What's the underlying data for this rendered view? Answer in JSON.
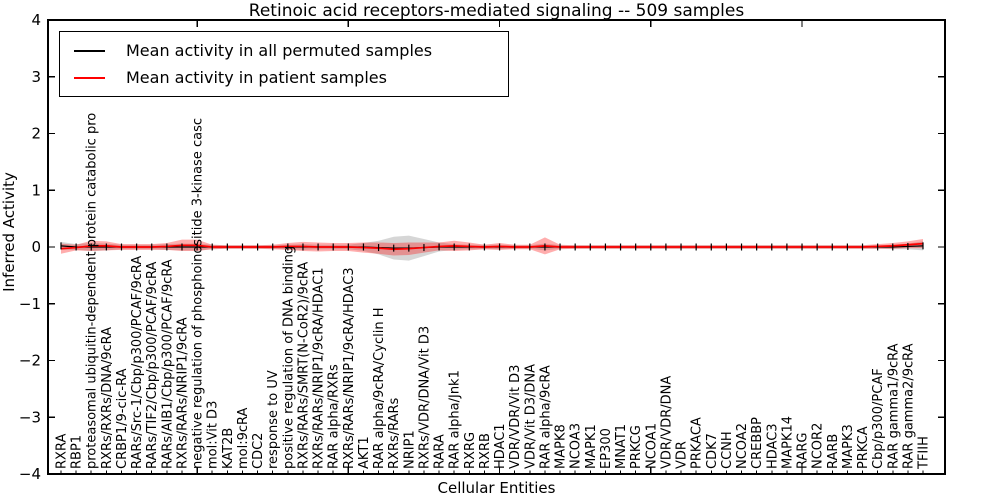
{
  "legend": {
    "entries": [
      {
        "label": "Mean activity in all permuted samples",
        "color": "#000000"
      },
      {
        "label": "Mean activity in patient samples",
        "color": "#ff0000"
      }
    ]
  },
  "chart_data": {
    "type": "line",
    "title": "Retinoic acid receptors-mediated signaling -- 509 samples",
    "xlabel": "Cellular Entities",
    "ylabel": "Inferred Activity",
    "ylim": [
      -4,
      4
    ],
    "yticks": [
      4,
      3,
      2,
      1,
      0,
      -1,
      -2,
      -3,
      -4
    ],
    "ytick_labels": [
      "4",
      "3",
      "2",
      "1",
      "0",
      "−1",
      "−2",
      "−3",
      "−4"
    ],
    "x_major_ticks": [
      10,
      20,
      30,
      40,
      50
    ],
    "grid": false,
    "legend_position": "upper left",
    "categories": [
      "RXRA",
      "RBP1",
      "proteasomal ubiquitin-dependent protein catabolic pro",
      "RXRs/RXRs/DNA/9cRA",
      "CRBP1/9-cic-RA",
      "RARs/Src-1/Cbp/p300/PCAF/9cRA",
      "RARs/TIF2/Cbp/p300/PCAF/9cRA",
      "RARs/AIB1/Cbp/p300/PCAF/9cRA",
      "RXRs/RARs/NRIP1/9cRA",
      "negative regulation of phosphoinositide 3-kinase casc",
      "mol:Vit D3",
      "KAT2B",
      "mol:9cRA",
      "CDC2",
      "response to UV",
      "positive regulation of DNA binding",
      "RXRs/RARs/SMRT(N-CoR2)/9cRA",
      "RXRs/RARs/NRIP1/9cRA/HDAC1",
      "RAR alpha/RXRs",
      "RXRs/RARs/NRIP1/9cRA/HDAC3",
      "AKT1",
      "RAR alpha/9cRA/Cyclin H",
      "RXRs/RARs",
      "NRIP1",
      "RXRs/VDR/DNA/Vit D3",
      "RARA",
      "RAR alpha/Jnk1",
      "RXRG",
      "RXRB",
      "HDAC1",
      "VDR/VDR/Vit D3",
      "VDR/Vit D3/DNA",
      "RAR alpha/9cRA",
      "MAPK8",
      "NCOA3",
      "MAPK1",
      "EP300",
      "MNAT1",
      "PRKCG",
      "NCOA1",
      "VDR/VDR/DNA",
      "VDR",
      "PRKACA",
      "CDK7",
      "CCNH",
      "NCOA2",
      "CREBBP",
      "HDAC3",
      "MAPK14",
      "RARG",
      "NCOR2",
      "RARB",
      "MAPK3",
      "PRKCA",
      "Cbp/p300/PCAF",
      "RAR gamma1/9cRA",
      "RAR gamma2/9cRA",
      "TFIIH"
    ],
    "series": [
      {
        "name": "Mean activity in all permuted samples",
        "color": "#000000",
        "band_color": "rgba(0,0,0,0.16)",
        "band_name": "permuted-std-band",
        "values": [
          0.02,
          0,
          0,
          0,
          0,
          0,
          0,
          0,
          0,
          0,
          0,
          0,
          0,
          0,
          0,
          0,
          0,
          0,
          0,
          0,
          0,
          -0.01,
          -0.02,
          -0.02,
          -0.01,
          0,
          0,
          0,
          0,
          0,
          0,
          0,
          0,
          0,
          0,
          0,
          0,
          0,
          0,
          0,
          0,
          0,
          0,
          0,
          0,
          0,
          0,
          0,
          0,
          0,
          0,
          0,
          0,
          0,
          0,
          0,
          0.01,
          0.02
        ],
        "band_halfwidth": [
          0.07,
          0.05,
          0.07,
          0.06,
          0.04,
          0.04,
          0.04,
          0.05,
          0.06,
          0.06,
          0.04,
          0.03,
          0.03,
          0.03,
          0.03,
          0.04,
          0.05,
          0.04,
          0.04,
          0.04,
          0.07,
          0.12,
          0.2,
          0.22,
          0.15,
          0.08,
          0.05,
          0.04,
          0.04,
          0.04,
          0.03,
          0.03,
          0.06,
          0.03,
          0.03,
          0.03,
          0.03,
          0.03,
          0.03,
          0.03,
          0.03,
          0.03,
          0.03,
          0.03,
          0.03,
          0.03,
          0.03,
          0.03,
          0.03,
          0.03,
          0.03,
          0.03,
          0.03,
          0.03,
          0.03,
          0.04,
          0.05,
          0.08
        ]
      },
      {
        "name": "Mean activity in patient samples",
        "color": "#ff0000",
        "band_color": "rgba(255,0,0,0.32)",
        "band_name": "patient-std-band",
        "values": [
          -0.03,
          -0.01,
          0.02,
          0.02,
          0,
          0,
          0,
          0.01,
          0.03,
          0.03,
          0,
          0,
          0,
          0,
          0,
          0.01,
          0.01,
          0,
          0,
          0,
          -0.01,
          -0.02,
          -0.04,
          -0.03,
          -0.01,
          0.01,
          0.02,
          0.01,
          0,
          0.01,
          0,
          0,
          0.02,
          0,
          0,
          0,
          0,
          0,
          0,
          0,
          0,
          0,
          0,
          0,
          0,
          0,
          0,
          0,
          0,
          0,
          0,
          0,
          0,
          0,
          0.01,
          0.02,
          0.04,
          0.06
        ],
        "band_halfwidth": [
          0.09,
          0.05,
          0.09,
          0.08,
          0.05,
          0.05,
          0.05,
          0.06,
          0.1,
          0.1,
          0.04,
          0.03,
          0.03,
          0.03,
          0.04,
          0.06,
          0.08,
          0.08,
          0.07,
          0.07,
          0.09,
          0.1,
          0.11,
          0.11,
          0.09,
          0.07,
          0.09,
          0.07,
          0.04,
          0.06,
          0.04,
          0.04,
          0.15,
          0.04,
          0.03,
          0.03,
          0.03,
          0.03,
          0.03,
          0.03,
          0.03,
          0.03,
          0.03,
          0.03,
          0.03,
          0.03,
          0.03,
          0.03,
          0.03,
          0.03,
          0.03,
          0.03,
          0.03,
          0.03,
          0.04,
          0.05,
          0.06,
          0.08
        ]
      }
    ]
  }
}
